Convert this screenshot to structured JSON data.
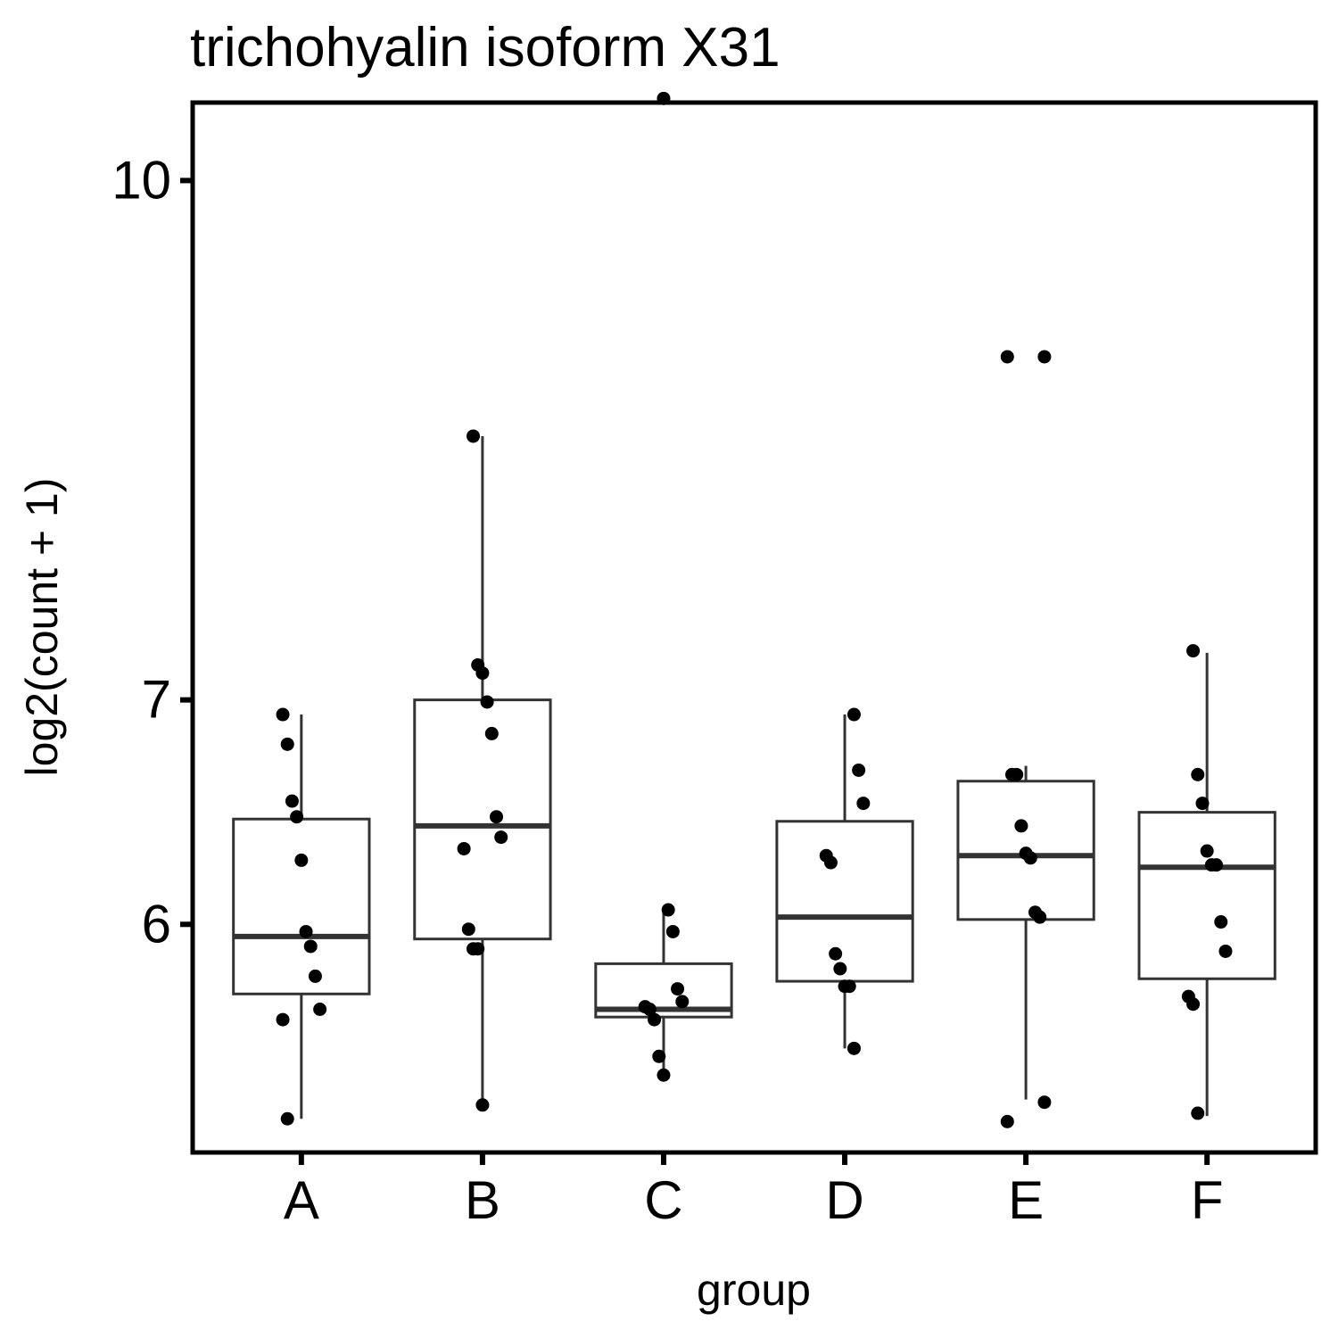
{
  "chart_data": {
    "type": "box",
    "title": "trichohyalin isoform X31",
    "xlabel": "group",
    "ylabel": "log2(count + 1)",
    "y_scale": "log",
    "y_ticks": [
      "6",
      "7",
      "10"
    ],
    "ylim": [
      5.13,
      10.55
    ],
    "categories": [
      "A",
      "B",
      "C",
      "D",
      "E",
      "F"
    ],
    "boxes": [
      {
        "group": "A",
        "whisker_low": 5.25,
        "q1": 5.72,
        "median": 5.95,
        "q3": 6.45,
        "whisker_high": 6.93
      },
      {
        "group": "B",
        "whisker_low": 5.3,
        "q1": 5.94,
        "median": 6.42,
        "q3": 7.0,
        "whisker_high": 8.39
      },
      {
        "group": "C",
        "whisker_low": 5.41,
        "q1": 5.63,
        "median": 5.66,
        "q3": 5.84,
        "whisker_high": 6.06
      },
      {
        "group": "D",
        "whisker_low": 5.51,
        "q1": 5.77,
        "median": 6.03,
        "q3": 6.44,
        "whisker_high": 6.93
      },
      {
        "group": "E",
        "whisker_low": 5.32,
        "q1": 6.02,
        "median": 6.29,
        "q3": 6.62,
        "whisker_high": 6.69
      },
      {
        "group": "F",
        "whisker_low": 5.26,
        "q1": 5.78,
        "median": 6.24,
        "q3": 6.48,
        "whisker_high": 7.23
      }
    ],
    "points": [
      {
        "group": "A",
        "values": [
          6.93,
          6.79,
          6.53,
          6.46,
          6.27,
          5.97,
          5.91,
          5.79,
          5.66,
          5.62,
          5.25
        ]
      },
      {
        "group": "B",
        "values": [
          8.39,
          7.17,
          7.13,
          6.99,
          6.84,
          6.46,
          6.37,
          6.32,
          5.98,
          5.9,
          5.9,
          5.3
        ]
      },
      {
        "group": "C",
        "values": [
          10.58,
          6.06,
          5.97,
          5.74,
          5.69,
          5.67,
          5.66,
          5.62,
          5.48,
          5.41
        ]
      },
      {
        "group": "D",
        "values": [
          6.93,
          6.67,
          6.52,
          6.29,
          6.26,
          5.88,
          5.82,
          5.75,
          5.75,
          5.51
        ]
      },
      {
        "group": "E",
        "values": [
          8.86,
          8.86,
          6.65,
          6.65,
          6.42,
          6.3,
          6.28,
          6.05,
          6.03,
          5.31,
          5.24
        ]
      },
      {
        "group": "F",
        "values": [
          7.24,
          6.65,
          6.52,
          6.31,
          6.25,
          6.25,
          6.01,
          5.89,
          5.71,
          5.68,
          5.27
        ]
      }
    ],
    "grid": false,
    "legend": "none",
    "colors": {
      "box_line": "#333333",
      "point": "#000000",
      "frame": "#000000",
      "background": "#ffffff"
    }
  }
}
